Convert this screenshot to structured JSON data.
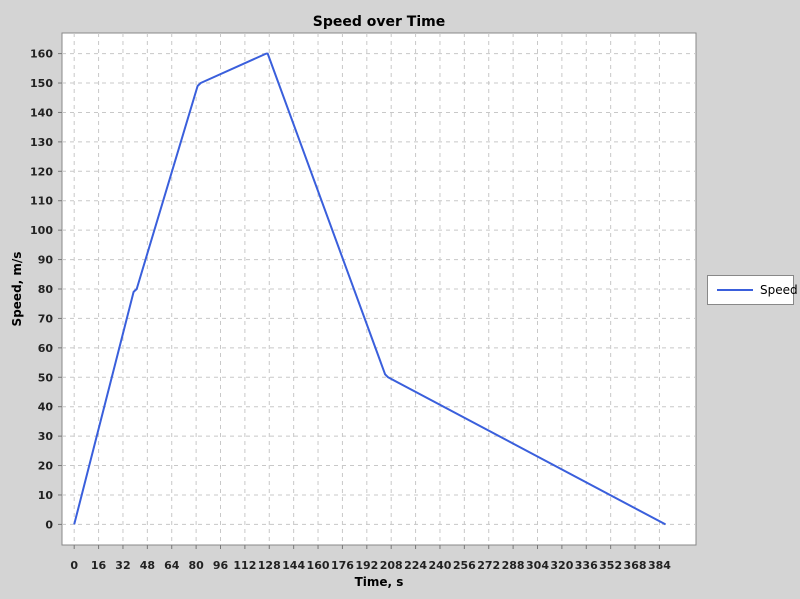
{
  "chart_data": {
    "type": "line",
    "title": "Speed over Time",
    "xlabel": "Time, s",
    "ylabel": "Speed, m/s",
    "xlim": [
      -8,
      408
    ],
    "ylim": [
      -7,
      167
    ],
    "xticks": [
      0,
      16,
      32,
      48,
      64,
      80,
      96,
      112,
      128,
      144,
      160,
      176,
      192,
      208,
      224,
      240,
      256,
      272,
      288,
      304,
      320,
      336,
      352,
      368,
      384
    ],
    "yticks": [
      0,
      10,
      20,
      30,
      40,
      50,
      60,
      70,
      80,
      90,
      100,
      110,
      120,
      130,
      140,
      150,
      160
    ],
    "grid": true,
    "legend_position": "right",
    "series": [
      {
        "name": "Speed",
        "color": "#3a5fdc",
        "x": [
          0,
          39,
          41,
          81,
          83,
          126,
          127,
          204,
          206,
          388
        ],
        "y": [
          0,
          79,
          80,
          149,
          150,
          160,
          160,
          51,
          50,
          0
        ]
      }
    ]
  },
  "colors": {
    "background": "#d4d4d4",
    "plot_background": "#ffffff",
    "grid": "#c8c8c8"
  }
}
